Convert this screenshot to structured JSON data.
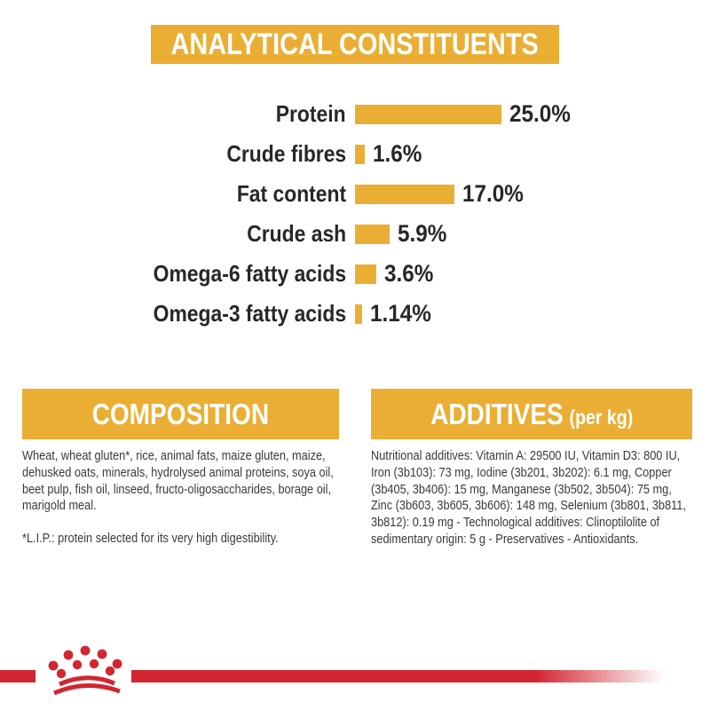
{
  "chart_data": {
    "type": "bar",
    "orientation": "horizontal",
    "title": "ANALYTICAL CONSTITUENTS",
    "unit": "%",
    "xlim": [
      0,
      25
    ],
    "grid": false,
    "bar_color": "#EBAE34",
    "categories": [
      "Protein",
      "Crude fibres",
      "Fat content",
      "Crude ash",
      "Omega-6 fatty acids",
      "Omega-3 fatty acids"
    ],
    "values": [
      25.0,
      1.6,
      17.0,
      5.9,
      3.6,
      1.14
    ],
    "rows": [
      {
        "label": "Protein",
        "value": 25.0,
        "display": "25.0%"
      },
      {
        "label": "Crude fibres",
        "value": 1.6,
        "display": "1.6%"
      },
      {
        "label": "Fat content",
        "value": 17.0,
        "display": "17.0%"
      },
      {
        "label": "Crude ash",
        "value": 5.9,
        "display": "5.9%"
      },
      {
        "label": "Omega-6 fatty acids",
        "value": 3.6,
        "display": "3.6%"
      },
      {
        "label": "Omega-3 fatty acids",
        "value": 1.14,
        "display": "1.14%"
      }
    ]
  },
  "composition": {
    "title": "COMPOSITION",
    "body": "Wheat, wheat gluten*, rice, animal fats, maize gluten, maize, dehusked oats, minerals, hydrolysed animal proteins, soya oil, beet pulp, fish oil, linseed, fructo-oligosaccharides, borage oil, marigold meal.",
    "footnote": "*L.I.P.: protein selected for its very high digestibility."
  },
  "additives": {
    "title": "ADDITIVES",
    "title_suffix": "(per kg)",
    "body": "Nutritional additives: Vitamin A: 29500 IU, Vitamin D3: 800 IU, Iron (3b103): 73 mg, Iodine (3b201, 3b202): 6.1 mg, Copper (3b405, 3b406): 15 mg, Manganese (3b502, 3b504): 75 mg, Zinc (3b603, 3b605, 3b606): 148 mg, Selenium (3b801, 3b811, 3b812): 0.19 mg - Technological additives: Clinoptilolite of sedimentary origin: 5 g - Preservatives - Antioxidants."
  },
  "brand": {
    "logo": "royal-canin-crown",
    "accent_red": "#D22630",
    "accent_gold": "#EBAE34"
  }
}
